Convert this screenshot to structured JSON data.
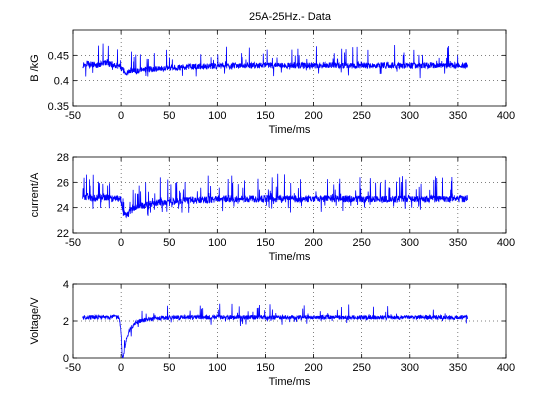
{
  "figure": {
    "title": "25A-25Hz.- Data"
  },
  "chart_data": [
    {
      "type": "line",
      "xlabel": "Time/ms",
      "ylabel": "B /kG",
      "xlim": [
        -50,
        400
      ],
      "ylim": [
        0.35,
        0.5
      ],
      "xticks": [
        -50,
        0,
        50,
        100,
        150,
        200,
        250,
        300,
        350,
        400
      ],
      "yticks": [
        0.35,
        0.4,
        0.45
      ],
      "ytick_labels": [
        "0.35",
        "0.4",
        "0.45"
      ],
      "grid": true,
      "color": "#0000ff",
      "series": [
        {
          "x": [
            -40,
            -35,
            -30,
            -25,
            -20,
            -15,
            -10,
            -5,
            0,
            5,
            10,
            15,
            20,
            25,
            30,
            40,
            50,
            60,
            70,
            80,
            90,
            100,
            120,
            140,
            160,
            180,
            200,
            220,
            240,
            260,
            280,
            300,
            320,
            340,
            360
          ],
          "values": [
            0.43,
            0.435,
            0.432,
            0.43,
            0.434,
            0.436,
            0.432,
            0.43,
            0.425,
            0.415,
            0.42,
            0.418,
            0.42,
            0.422,
            0.423,
            0.424,
            0.425,
            0.426,
            0.427,
            0.428,
            0.428,
            0.429,
            0.429,
            0.43,
            0.43,
            0.43,
            0.43,
            0.43,
            0.43,
            0.43,
            0.43,
            0.43,
            0.43,
            0.43,
            0.43
          ]
        }
      ]
    },
    {
      "type": "line",
      "xlabel": "Time/ms",
      "ylabel": "current/A",
      "xlim": [
        -50,
        400
      ],
      "ylim": [
        22,
        28
      ],
      "xticks": [
        -50,
        0,
        50,
        100,
        150,
        200,
        250,
        300,
        350,
        400
      ],
      "yticks": [
        22,
        24,
        26,
        28
      ],
      "ytick_labels": [
        "22",
        "24",
        "26",
        "28"
      ],
      "grid": true,
      "color": "#0000ff",
      "series": [
        {
          "x": [
            -40,
            -35,
            -30,
            -25,
            -20,
            -15,
            -10,
            -5,
            0,
            2,
            5,
            10,
            15,
            20,
            25,
            30,
            40,
            50,
            60,
            70,
            80,
            90,
            100,
            120,
            140,
            160,
            180,
            200,
            220,
            240,
            260,
            280,
            300,
            320,
            340,
            360
          ],
          "values": [
            24.8,
            24.9,
            24.7,
            24.8,
            24.9,
            24.8,
            24.7,
            24.8,
            24.6,
            23.6,
            23.4,
            23.8,
            24.0,
            24.1,
            24.2,
            24.3,
            24.4,
            24.5,
            24.5,
            24.6,
            24.6,
            24.6,
            24.7,
            24.7,
            24.7,
            24.7,
            24.7,
            24.7,
            24.7,
            24.7,
            24.7,
            24.7,
            24.7,
            24.7,
            24.7,
            24.7
          ]
        }
      ]
    },
    {
      "type": "line",
      "xlabel": "Time/ms",
      "ylabel": "Voltage/V",
      "xlim": [
        -50,
        400
      ],
      "ylim": [
        0,
        4
      ],
      "xticks": [
        -50,
        0,
        50,
        100,
        150,
        200,
        250,
        300,
        350,
        400
      ],
      "yticks": [
        0,
        2,
        4
      ],
      "ytick_labels": [
        "0",
        "2",
        "4"
      ],
      "grid": true,
      "color": "#0000ff",
      "series": [
        {
          "x": [
            -40,
            -30,
            -20,
            -10,
            -2,
            0,
            1,
            2,
            4,
            6,
            8,
            10,
            15,
            20,
            30,
            40,
            60,
            80,
            100,
            150,
            200,
            250,
            300,
            360
          ],
          "values": [
            2.2,
            2.2,
            2.2,
            2.2,
            2.2,
            1.4,
            0.2,
            0.05,
            0.6,
            1.1,
            1.4,
            1.6,
            1.9,
            2.0,
            2.1,
            2.15,
            2.2,
            2.2,
            2.2,
            2.2,
            2.2,
            2.2,
            2.2,
            2.2
          ]
        }
      ]
    }
  ]
}
